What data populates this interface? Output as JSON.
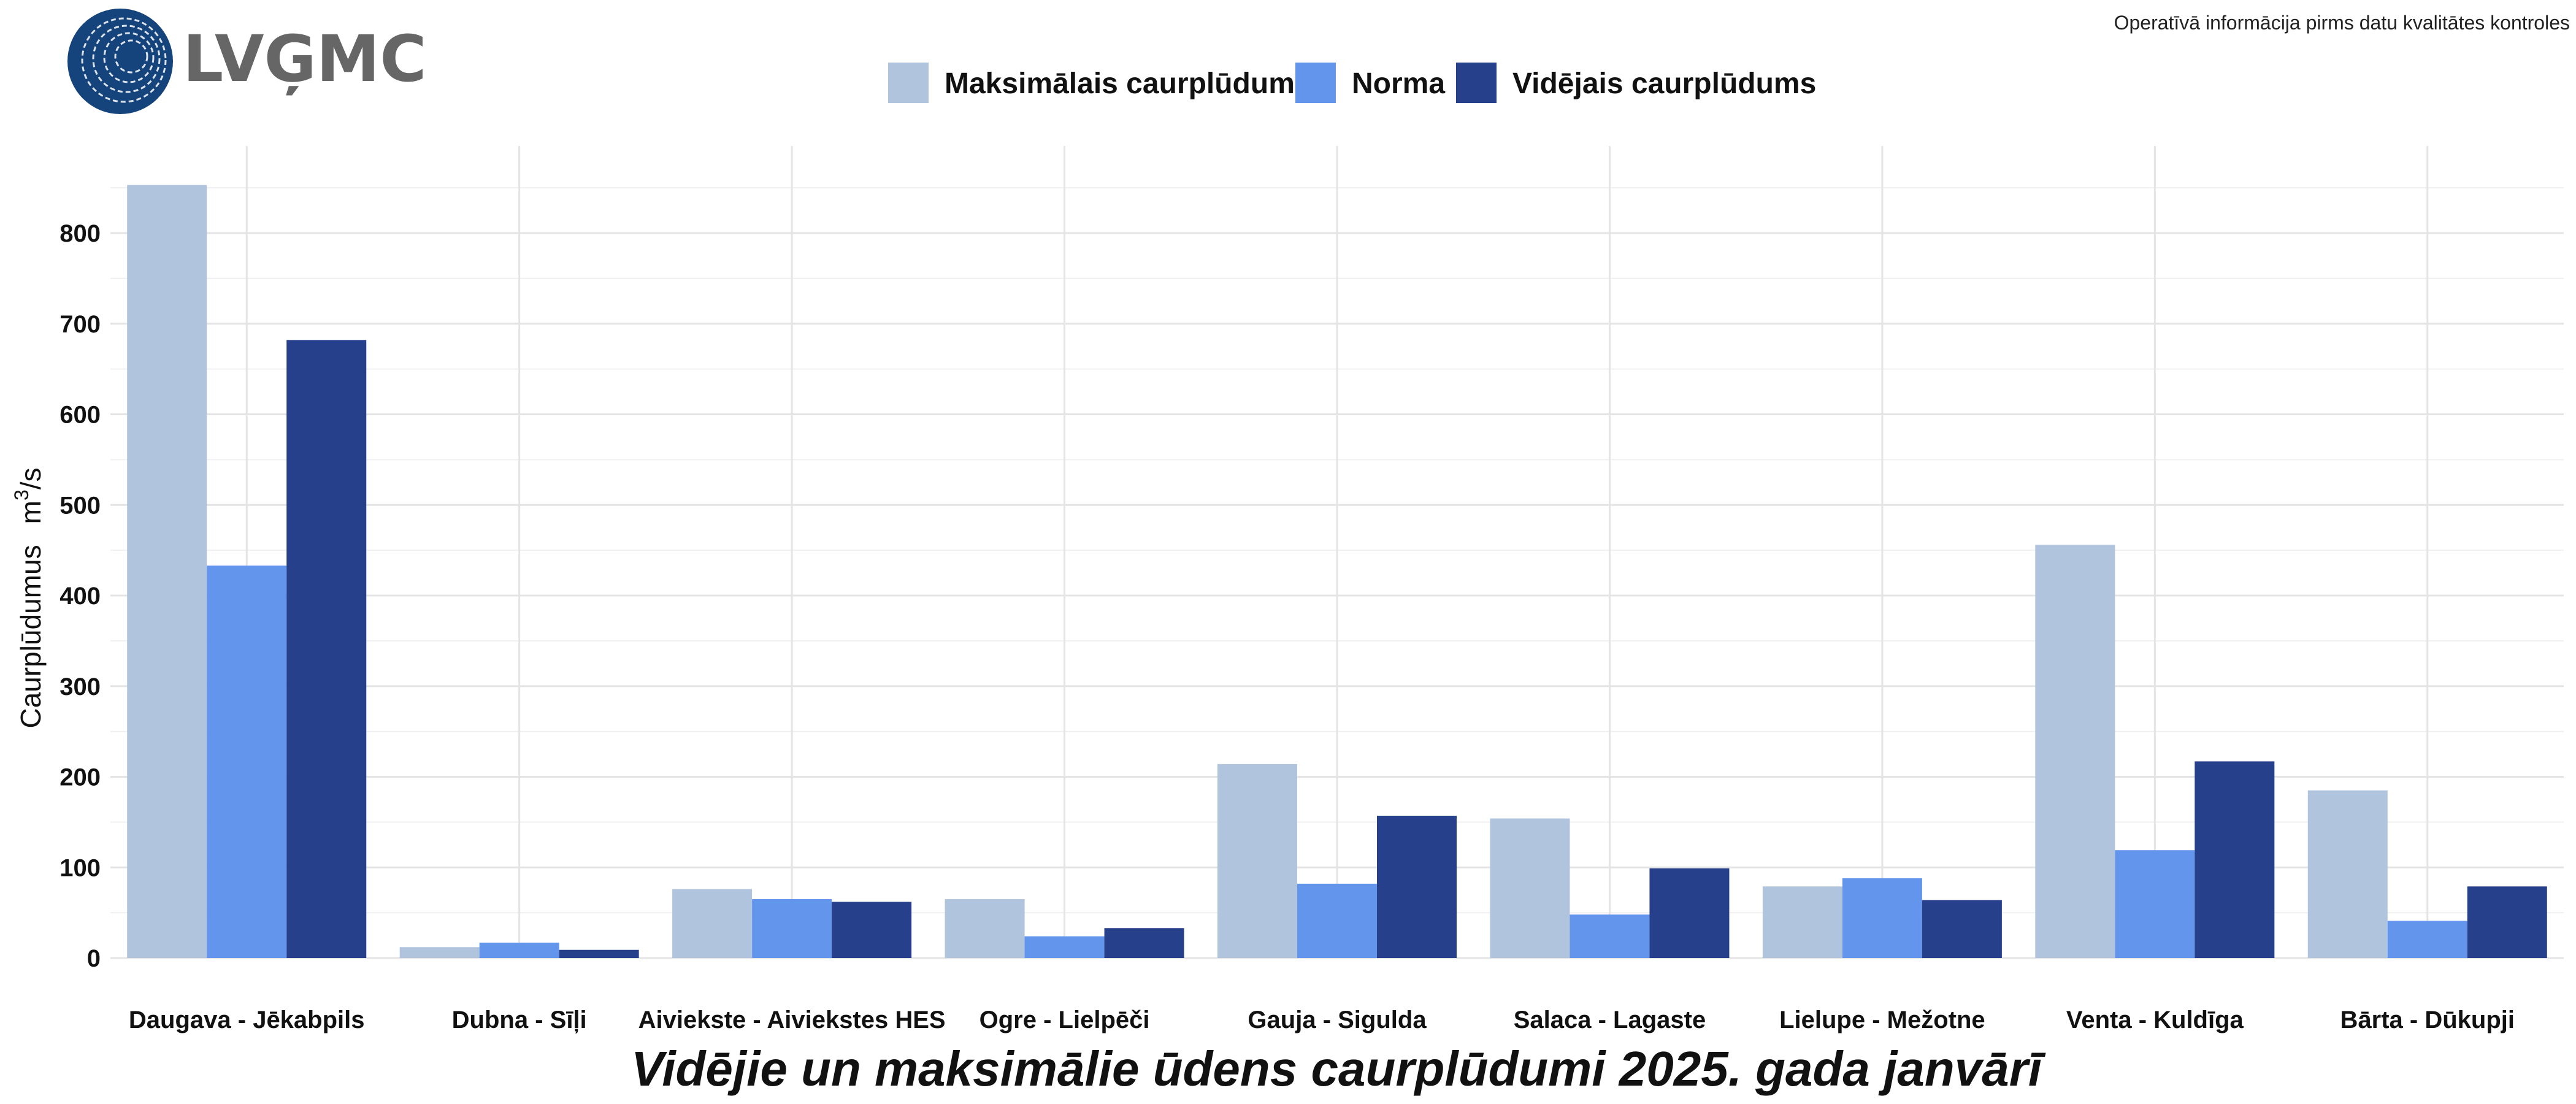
{
  "header": {
    "logo_text": "LVĢMC",
    "note": "Operatīvā informācija pirms datu kvalitātes kontroles"
  },
  "chart_data": {
    "type": "bar",
    "title": "Vidējie un maksimālie ūdens caurplūdumi 2025. gada janvārī",
    "xlabel": "",
    "ylabel": "Caurplūdumus",
    "ylabel_unit_base": "m",
    "ylabel_unit_sup": "3",
    "ylabel_unit_tail": "/s",
    "ylim": [
      0,
      880
    ],
    "yticks": [
      0,
      100,
      200,
      300,
      400,
      500,
      600,
      700,
      800
    ],
    "grid": true,
    "legend_position": "top",
    "categories": [
      "Daugava - Jēkabpils",
      "Dubna - Sīļi",
      "Aiviekste - Aiviekstes HES",
      "Ogre - Lielpēči",
      "Gauja - Sigulda",
      "Salaca - Lagaste",
      "Lielupe - Mežotne",
      "Venta - Kuldīga",
      "Bārta - Dūkupji"
    ],
    "series": [
      {
        "name": "Maksimālais caurplūdums",
        "color": "#b0c4de",
        "values": [
          853,
          12,
          76,
          65,
          214,
          154,
          79,
          456,
          185
        ]
      },
      {
        "name": "Norma",
        "color": "#6495ed",
        "values": [
          433,
          17,
          65,
          24,
          82,
          48,
          88,
          119,
          41
        ]
      },
      {
        "name": "Vidējais caurplūdums",
        "color": "#27408b",
        "values": [
          682,
          9,
          62,
          33,
          157,
          99,
          64,
          217,
          79
        ]
      }
    ]
  }
}
